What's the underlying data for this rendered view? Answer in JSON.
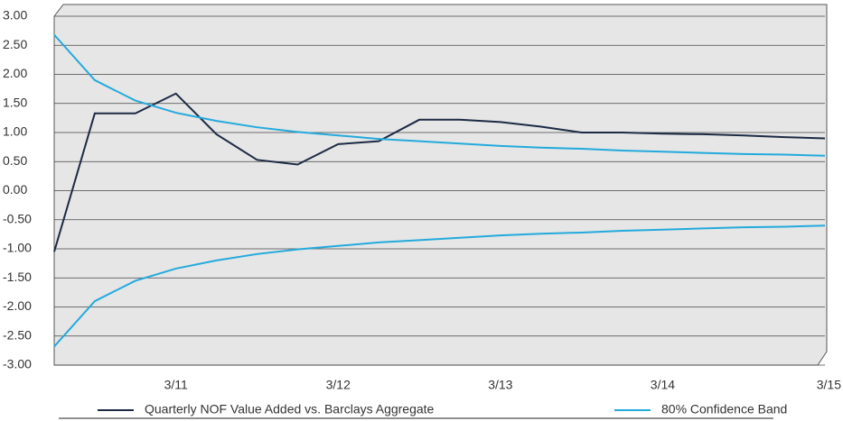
{
  "chart_data": {
    "type": "line",
    "categories": [
      null,
      null,
      null,
      "3/11",
      null,
      null,
      null,
      "3/12",
      null,
      null,
      null,
      "3/13",
      null,
      null,
      null,
      "3/14",
      null,
      null,
      null,
      "3/15"
    ],
    "series": [
      {
        "name": "Quarterly NOF Value Added vs. Barclays Aggregate",
        "color": "#1c2a44",
        "values": [
          -1.05,
          1.33,
          1.33,
          1.67,
          0.97,
          0.53,
          0.45,
          0.8,
          0.85,
          1.22,
          1.22,
          1.18,
          1.1,
          1.0,
          1.0,
          0.98,
          0.97,
          0.95,
          0.92,
          0.9
        ]
      },
      {
        "name": "80% Confidence Band",
        "color": "#23aadc",
        "values": [
          2.68,
          1.9,
          1.55,
          1.34,
          1.2,
          1.09,
          1.01,
          0.95,
          0.89,
          0.85,
          0.81,
          0.77,
          0.74,
          0.72,
          0.69,
          0.67,
          0.65,
          0.63,
          0.62,
          0.6
        ],
        "lower": [
          -2.68,
          -1.9,
          -1.55,
          -1.34,
          -1.2,
          -1.09,
          -1.01,
          -0.95,
          -0.89,
          -0.85,
          -0.81,
          -0.77,
          -0.74,
          -0.72,
          -0.69,
          -0.67,
          -0.65,
          -0.63,
          -0.62,
          -0.6
        ]
      }
    ],
    "ylim": [
      -3,
      3
    ],
    "yticks": [
      {
        "value": 3,
        "label": "3.00"
      },
      {
        "value": 2.5,
        "label": "2.50"
      },
      {
        "value": 2,
        "label": "2.00"
      },
      {
        "value": 1.5,
        "label": "1.50"
      },
      {
        "value": 1,
        "label": "1.00"
      },
      {
        "value": 0.5,
        "label": "0.50"
      },
      {
        "value": 0,
        "label": "0.00"
      },
      {
        "value": -0.5,
        "label": "-0.50"
      },
      {
        "value": -1,
        "label": "-1.00"
      },
      {
        "value": -1.5,
        "label": "-1.50"
      },
      {
        "value": -2,
        "label": "-2.00"
      },
      {
        "value": -2.5,
        "label": "-2.50"
      },
      {
        "value": -3,
        "label": "-3.00"
      }
    ],
    "grid": true
  }
}
